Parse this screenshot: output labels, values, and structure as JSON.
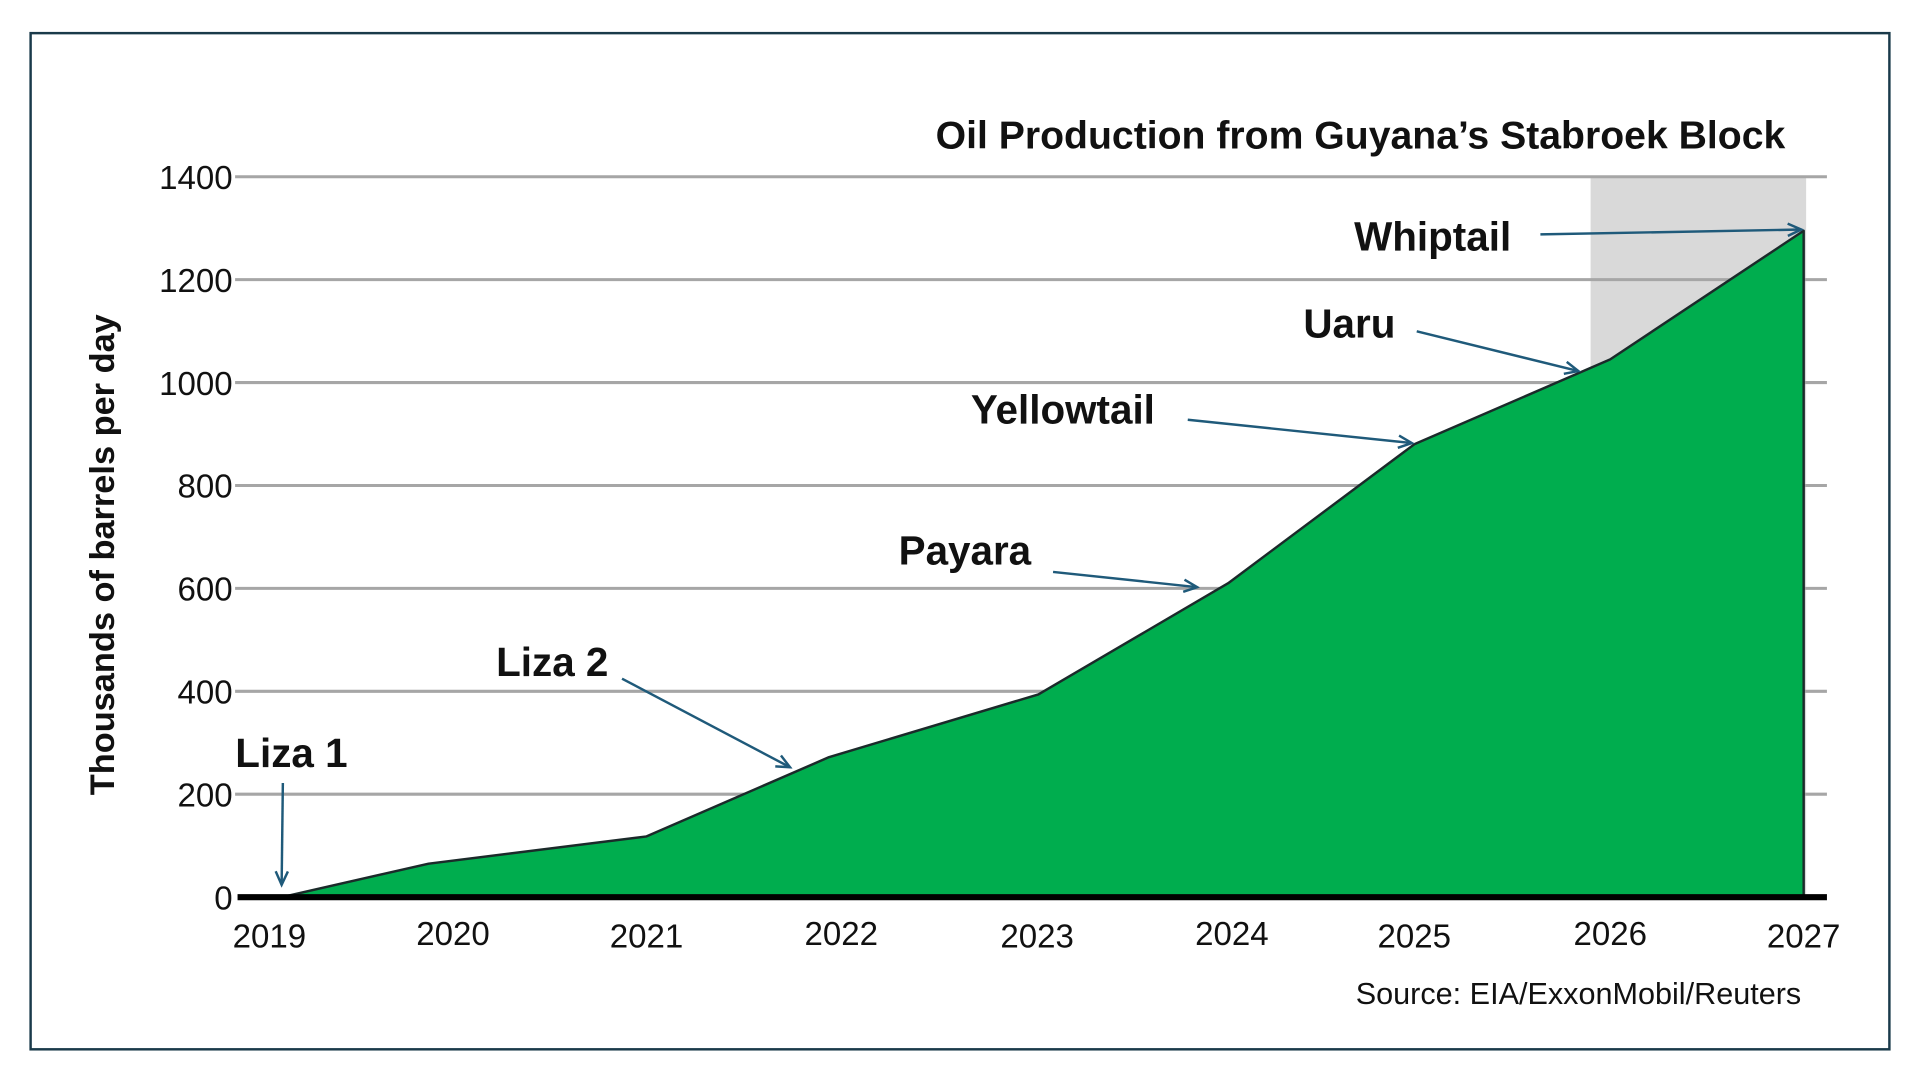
{
  "chart_data": {
    "type": "area",
    "title": "Oil Production from Guyana’s Stabroek Block",
    "xlabel": "",
    "ylabel": "Thousands of barrels per day",
    "source": "Source: EIA/ExxonMobil/Reuters",
    "x": [
      "2019",
      "2020",
      "2021",
      "2022",
      "2023",
      "2024",
      "2025",
      "2026",
      "2027"
    ],
    "values": [
      0,
      65,
      118,
      272,
      394,
      610,
      880,
      1045,
      1295
    ],
    "ylim": [
      0,
      1400
    ],
    "yticks": [
      "0",
      "200",
      "400",
      "600",
      "800",
      "1000",
      "1200",
      "1400"
    ],
    "grid": true,
    "fill_color": "#00ad4e",
    "shaded_region": {
      "from": 2025.9,
      "to": 2027,
      "color": "#d9d9d9"
    },
    "annotations": [
      {
        "label": "Liza 1",
        "year": 2019,
        "value": 0
      },
      {
        "label": "Liza 2",
        "year": 2021.8,
        "value": 250
      },
      {
        "label": "Payara",
        "year": 2023.85,
        "value": 600
      },
      {
        "label": "Yellowtail",
        "year": 2025,
        "value": 880
      },
      {
        "label": "Uaru",
        "year": 2025.85,
        "value": 1020
      },
      {
        "label": "Whiptail",
        "year": 2027,
        "value": 1295
      }
    ],
    "arrow_color": "#1f5a7a",
    "border_color": "#1a3a4a"
  }
}
